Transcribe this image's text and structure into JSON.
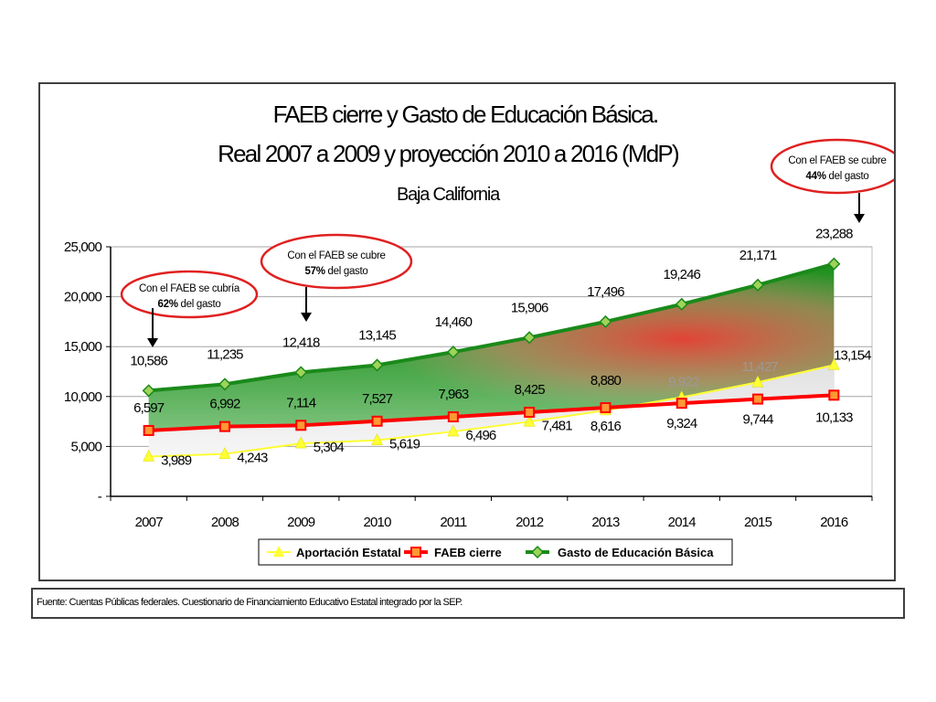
{
  "chart_data": {
    "type": "line",
    "title": "FAEB cierre y Gasto de Educación Básica.",
    "title_line2": "Real 2007 a 2009 y proyección 2010 a 2016 (MdP)",
    "subtitle": "Baja California",
    "categories": [
      "2007",
      "2008",
      "2009",
      "2010",
      "2011",
      "2012",
      "2013",
      "2014",
      "2015",
      "2016"
    ],
    "ylim": [
      0,
      25000
    ],
    "yticks": [
      {
        "value": 0,
        "label": "-"
      },
      {
        "value": 5000,
        "label": "5,000"
      },
      {
        "value": 10000,
        "label": "10,000"
      },
      {
        "value": 15000,
        "label": "15,000"
      },
      {
        "value": 20000,
        "label": "20,000"
      },
      {
        "value": 25000,
        "label": "25,000"
      }
    ],
    "grid": true,
    "legend_position": "bottom",
    "series": [
      {
        "name": "Aportación Estatal",
        "color": "#ffff33",
        "marker": "triangle",
        "values": [
          3989,
          4243,
          5304,
          5619,
          6496,
          7481,
          8616,
          9922,
          11427,
          13154
        ],
        "labels": [
          "3,989",
          "4,243",
          "5,304",
          "5,619",
          "6,496",
          "7,481",
          "8,616",
          "9,922",
          "11,427",
          "13,154"
        ]
      },
      {
        "name": "FAEB cierre",
        "color": "#ff0000",
        "marker": "square",
        "values": [
          6597,
          6992,
          7114,
          7527,
          7963,
          8425,
          8880,
          9324,
          9744,
          10133
        ],
        "labels": [
          "6,597",
          "6,992",
          "7,114",
          "7,527",
          "7,963",
          "8,425",
          "8,880",
          "9,324",
          "9,744",
          "10,133"
        ]
      },
      {
        "name": "Gasto de Educación Básica",
        "color": "#1a8a1a",
        "marker": "diamond",
        "values": [
          10586,
          11235,
          12418,
          13145,
          14460,
          15906,
          17496,
          19246,
          21171,
          23288
        ],
        "labels": [
          "10,586",
          "11,235",
          "12,418",
          "13,145",
          "14,460",
          "15,906",
          "17,496",
          "19,246",
          "21,171",
          "23,288"
        ]
      }
    ],
    "annotations": [
      {
        "text": "Con el FAEB se cubría",
        "bold": "62%",
        "rest": "del gasto",
        "category": "2007"
      },
      {
        "text": "Con el FAEB se cubre",
        "bold": "57%",
        "rest": "del gasto",
        "category": "2009"
      },
      {
        "text": "Con el FAEB se cubre",
        "bold": "44%",
        "rest": "del gasto",
        "category": "2016"
      }
    ]
  },
  "source": "Fuente: Cuentas Públicas federales. Cuestionario de Financiamiento Educativo Estatal integrado por la SEP."
}
